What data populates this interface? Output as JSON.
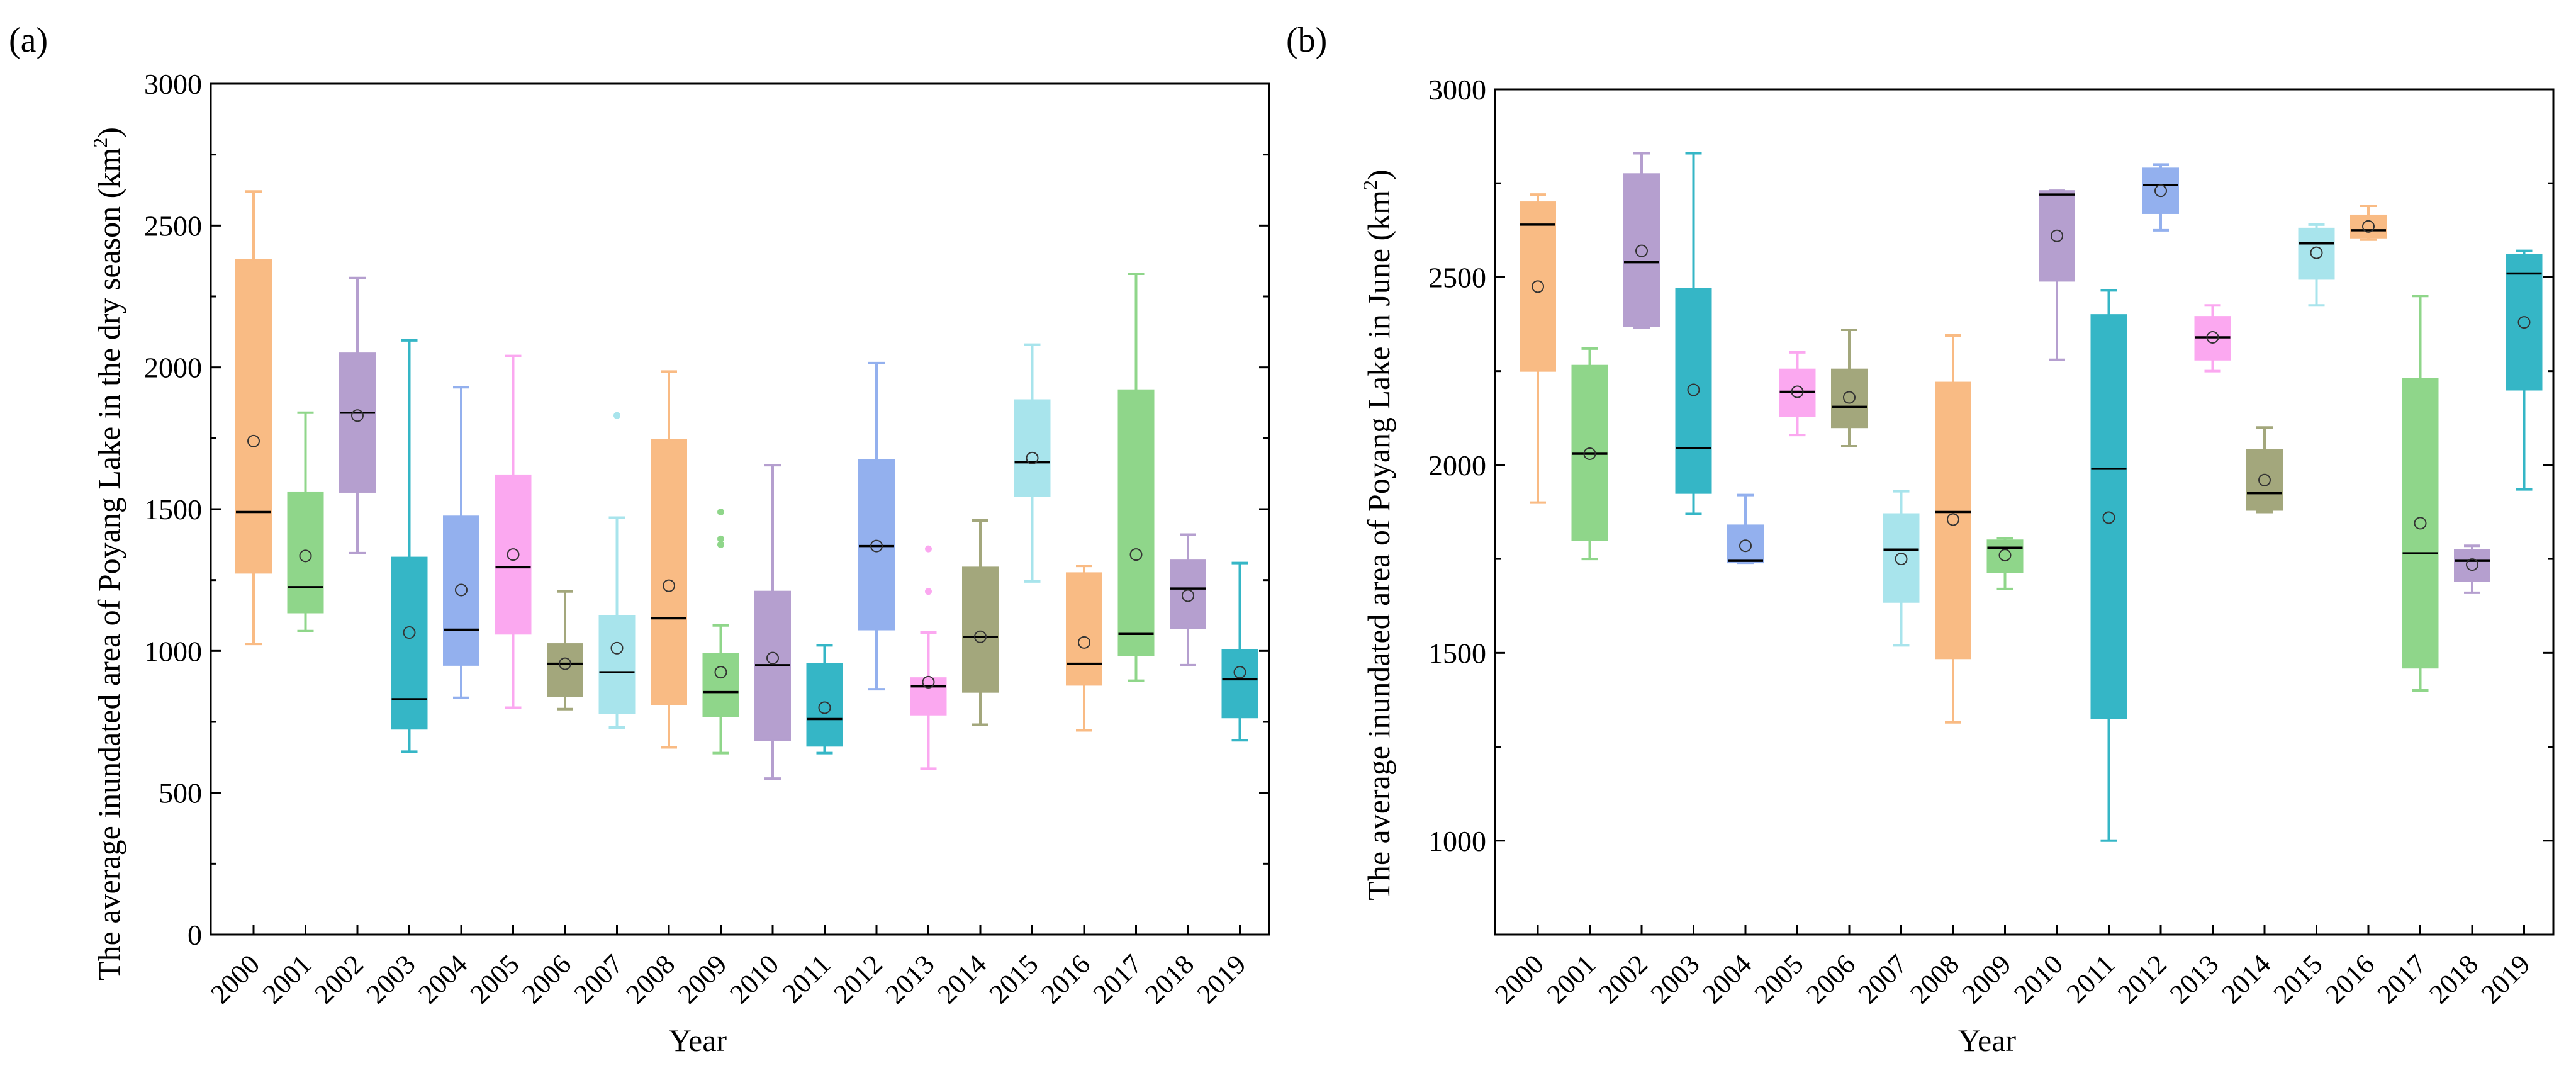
{
  "chart_data": [
    {
      "type": "box",
      "panel_label": "(a)",
      "xlabel": "Year",
      "ylabel": "The average inundated area of Poyang Lake in the dry season (km",
      "ylabel_sup": "2",
      "ylabel_close": ")",
      "ylim": [
        0,
        3000
      ],
      "yticks": [
        0,
        500,
        1000,
        1500,
        2000,
        2500,
        3000
      ],
      "ytick_labels": [
        "0",
        "500",
        "1000",
        "1500",
        "2000",
        "2500",
        "3000"
      ],
      "categories": [
        "2000",
        "2001",
        "2002",
        "2003",
        "2004",
        "2005",
        "2006",
        "2007",
        "2008",
        "2009",
        "2010",
        "2011",
        "2012",
        "2013",
        "2014",
        "2015",
        "2016",
        "2017",
        "2018",
        "2019"
      ],
      "boxes": [
        {
          "min": 1025,
          "q1": 1275,
          "median": 1490,
          "q3": 2380,
          "max": 2620,
          "mean": 1740,
          "outliers": [],
          "color": "#f9bb84"
        },
        {
          "min": 1070,
          "q1": 1135,
          "median": 1225,
          "q3": 1560,
          "max": 1840,
          "mean": 1335,
          "outliers": [],
          "color": "#8fd68a"
        },
        {
          "min": 1345,
          "q1": 1560,
          "median": 1840,
          "q3": 2050,
          "max": 2315,
          "mean": 1830,
          "outliers": [],
          "color": "#b59fcf"
        },
        {
          "min": 645,
          "q1": 725,
          "median": 830,
          "q3": 1330,
          "max": 2095,
          "mean": 1065,
          "outliers": [],
          "color": "#35b6c6"
        },
        {
          "min": 835,
          "q1": 950,
          "median": 1075,
          "q3": 1475,
          "max": 1930,
          "mean": 1215,
          "outliers": [],
          "color": "#93b0ee"
        },
        {
          "min": 800,
          "q1": 1060,
          "median": 1295,
          "q3": 1620,
          "max": 2040,
          "mean": 1340,
          "outliers": [],
          "color": "#fba8f0"
        },
        {
          "min": 795,
          "q1": 840,
          "median": 955,
          "q3": 1025,
          "max": 1210,
          "mean": 955,
          "outliers": [],
          "color": "#a3a77c"
        },
        {
          "min": 730,
          "q1": 780,
          "median": 925,
          "q3": 1125,
          "max": 1470,
          "mean": 1010,
          "outliers": [
            1830
          ],
          "color": "#a8e4ec"
        },
        {
          "min": 660,
          "q1": 810,
          "median": 1115,
          "q3": 1745,
          "max": 1985,
          "mean": 1230,
          "outliers": [],
          "color": "#f9bb84"
        },
        {
          "min": 640,
          "q1": 770,
          "median": 855,
          "q3": 990,
          "max": 1090,
          "mean": 925,
          "outliers": [
            1375,
            1395,
            1490
          ],
          "color": "#8fd68a"
        },
        {
          "min": 550,
          "q1": 685,
          "median": 950,
          "q3": 1210,
          "max": 1655,
          "mean": 975,
          "outliers": [],
          "color": "#b59fcf"
        },
        {
          "min": 640,
          "q1": 665,
          "median": 760,
          "q3": 955,
          "max": 1020,
          "mean": 800,
          "outliers": [],
          "color": "#35b6c6"
        },
        {
          "min": 865,
          "q1": 1075,
          "median": 1370,
          "q3": 1675,
          "max": 2015,
          "mean": 1370,
          "outliers": [],
          "color": "#93b0ee"
        },
        {
          "min": 585,
          "q1": 775,
          "median": 875,
          "q3": 905,
          "max": 1065,
          "mean": 890,
          "outliers": [
            1210,
            1360
          ],
          "color": "#fba8f0"
        },
        {
          "min": 740,
          "q1": 855,
          "median": 1050,
          "q3": 1295,
          "max": 1460,
          "mean": 1050,
          "outliers": [],
          "color": "#a3a77c"
        },
        {
          "min": 1245,
          "q1": 1545,
          "median": 1665,
          "q3": 1885,
          "max": 2080,
          "mean": 1680,
          "outliers": [],
          "color": "#a8e4ec"
        },
        {
          "min": 720,
          "q1": 880,
          "median": 955,
          "q3": 1275,
          "max": 1300,
          "mean": 1030,
          "outliers": [],
          "color": "#f9bb84"
        },
        {
          "min": 895,
          "q1": 985,
          "median": 1060,
          "q3": 1920,
          "max": 2330,
          "mean": 1340,
          "outliers": [],
          "color": "#8fd68a"
        },
        {
          "min": 950,
          "q1": 1080,
          "median": 1220,
          "q3": 1320,
          "max": 1410,
          "mean": 1195,
          "outliers": [],
          "color": "#b59fcf"
        },
        {
          "min": 685,
          "q1": 765,
          "median": 900,
          "q3": 1005,
          "max": 1310,
          "mean": 925,
          "outliers": [],
          "color": "#35b6c6"
        }
      ]
    },
    {
      "type": "box",
      "panel_label": "(b)",
      "xlabel": "Year",
      "ylabel": "The average  inundated  area of Poyang Lake in June (km",
      "ylabel_sup": "2",
      "ylabel_close": ")",
      "ylim": [
        750,
        3000
      ],
      "yticks": [
        1000,
        1500,
        2000,
        2500,
        3000
      ],
      "ytick_labels": [
        "1000",
        "1500",
        "2000",
        "2500",
        "3000"
      ],
      "categories": [
        "2000",
        "2001",
        "2002",
        "2003",
        "2004",
        "2005",
        "2006",
        "2007",
        "2008",
        "2009",
        "2010",
        "2011",
        "2012",
        "2013",
        "2014",
        "2015",
        "2016",
        "2017",
        "2018",
        "2019"
      ],
      "boxes": [
        {
          "min": 1900,
          "q1": 2250,
          "median": 2640,
          "q3": 2700,
          "max": 2720,
          "mean": 2475,
          "outliers": [],
          "color": "#f9bb84"
        },
        {
          "min": 1750,
          "q1": 1800,
          "median": 2030,
          "q3": 2265,
          "max": 2310,
          "mean": 2030,
          "outliers": [],
          "color": "#8fd68a"
        },
        {
          "min": 2365,
          "q1": 2370,
          "median": 2540,
          "q3": 2775,
          "max": 2830,
          "mean": 2570,
          "outliers": [],
          "color": "#b59fcf"
        },
        {
          "min": 1870,
          "q1": 1925,
          "median": 2045,
          "q3": 2470,
          "max": 2830,
          "mean": 2200,
          "outliers": [],
          "color": "#35b6c6"
        },
        {
          "min": 1740,
          "q1": 1740,
          "median": 1745,
          "q3": 1840,
          "max": 1920,
          "mean": 1785,
          "outliers": [],
          "color": "#93b0ee"
        },
        {
          "min": 2080,
          "q1": 2130,
          "median": 2195,
          "q3": 2255,
          "max": 2300,
          "mean": 2195,
          "outliers": [],
          "color": "#fba8f0"
        },
        {
          "min": 2050,
          "q1": 2100,
          "median": 2155,
          "q3": 2255,
          "max": 2360,
          "mean": 2180,
          "outliers": [],
          "color": "#a3a77c"
        },
        {
          "min": 1520,
          "q1": 1635,
          "median": 1775,
          "q3": 1870,
          "max": 1930,
          "mean": 1750,
          "outliers": [],
          "color": "#a8e4ec"
        },
        {
          "min": 1315,
          "q1": 1485,
          "median": 1875,
          "q3": 2220,
          "max": 2345,
          "mean": 1855,
          "outliers": [],
          "color": "#f9bb84"
        },
        {
          "min": 1670,
          "q1": 1715,
          "median": 1780,
          "q3": 1800,
          "max": 1805,
          "mean": 1760,
          "outliers": [],
          "color": "#8fd68a"
        },
        {
          "min": 2280,
          "q1": 2490,
          "median": 2720,
          "q3": 2730,
          "max": 2730,
          "mean": 2610,
          "outliers": [],
          "color": "#b59fcf"
        },
        {
          "min": 1000,
          "q1": 1325,
          "median": 1990,
          "q3": 2400,
          "max": 2465,
          "mean": 1860,
          "outliers": [],
          "color": "#35b6c6"
        },
        {
          "min": 2625,
          "q1": 2670,
          "median": 2745,
          "q3": 2790,
          "max": 2800,
          "mean": 2730,
          "outliers": [],
          "color": "#93b0ee"
        },
        {
          "min": 2250,
          "q1": 2280,
          "median": 2340,
          "q3": 2395,
          "max": 2425,
          "mean": 2340,
          "outliers": [],
          "color": "#fba8f0"
        },
        {
          "min": 1875,
          "q1": 1880,
          "median": 1925,
          "q3": 2040,
          "max": 2100,
          "mean": 1960,
          "outliers": [],
          "color": "#a3a77c"
        },
        {
          "min": 2425,
          "q1": 2495,
          "median": 2590,
          "q3": 2630,
          "max": 2640,
          "mean": 2565,
          "outliers": [],
          "color": "#a8e4ec"
        },
        {
          "min": 2600,
          "q1": 2605,
          "median": 2625,
          "q3": 2665,
          "max": 2690,
          "mean": 2635,
          "outliers": [],
          "color": "#f9bb84"
        },
        {
          "min": 1400,
          "q1": 1460,
          "median": 1765,
          "q3": 2230,
          "max": 2450,
          "mean": 1845,
          "outliers": [],
          "color": "#8fd68a"
        },
        {
          "min": 1660,
          "q1": 1690,
          "median": 1745,
          "q3": 1775,
          "max": 1785,
          "mean": 1735,
          "outliers": [],
          "color": "#b59fcf"
        },
        {
          "min": 1935,
          "q1": 2200,
          "median": 2510,
          "q3": 2560,
          "max": 2570,
          "mean": 2380,
          "outliers": [],
          "color": "#35b6c6"
        }
      ]
    }
  ]
}
